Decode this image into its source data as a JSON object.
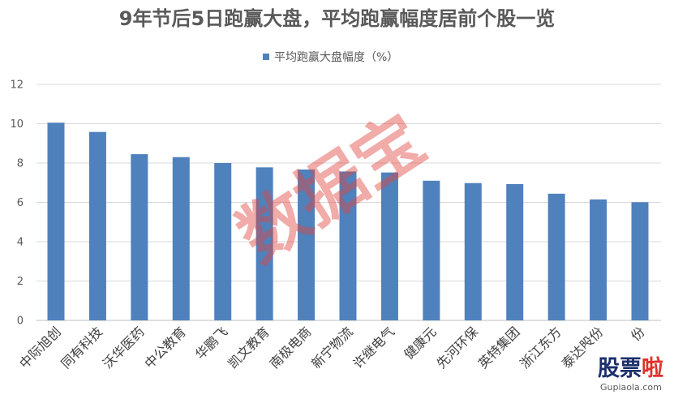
{
  "chart_data": {
    "type": "bar",
    "title": "9年节后5日跑赢大盘，平均跑赢幅度居前个股一览",
    "categories": [
      "中际旭创",
      "同有科技",
      "沃华医药",
      "中公教育",
      "华鹏飞",
      "凯文教育",
      "南极电商",
      "新宁物流",
      "许继电气",
      "健康元",
      "先河环保",
      "英特集团",
      "浙江东方",
      "泰达股份",
      "份"
    ],
    "series": [
      {
        "name": "平均跑赢大盘幅度（%）",
        "values": [
          10.05,
          9.58,
          8.45,
          8.3,
          8.0,
          7.78,
          7.67,
          7.57,
          7.52,
          7.1,
          6.98,
          6.93,
          6.44,
          6.15,
          6.01
        ]
      }
    ],
    "ylim": [
      0,
      12
    ],
    "yticks": [
      0,
      2,
      4,
      6,
      8,
      10,
      12
    ],
    "grid": true,
    "legend_position": "top"
  },
  "watermark": "数据宝",
  "logo": {
    "main": "股票",
    "accent": "啦",
    "site": "Gupiaola.com"
  },
  "colors": {
    "bar": "#4f81bd",
    "watermark": "#e0453d",
    "logo_main": "#1c2f6b",
    "logo_accent": "#e0302a"
  }
}
